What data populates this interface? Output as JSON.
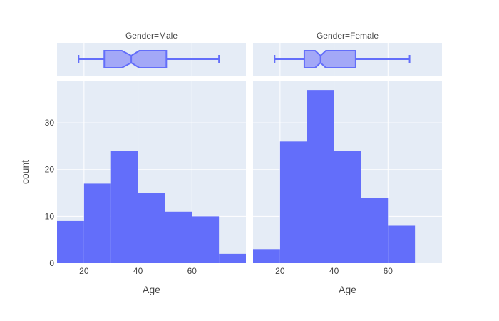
{
  "chart_data": {
    "type": "histogram",
    "y_axis": {
      "label": "count",
      "range": [
        0,
        39
      ],
      "ticks": [
        0,
        10,
        20,
        30
      ]
    },
    "x_axis": {
      "label": "Age",
      "ticks": [
        20,
        40,
        60
      ]
    },
    "colors": {
      "bar": "#636efa",
      "box_fill": "#a3a8f7",
      "box_line": "#636efa",
      "plot_bg": "#e5ecf6",
      "grid": "#ffffff"
    },
    "grid": true,
    "facets": [
      {
        "title": "Gender=Male",
        "xlim": [
          10,
          80
        ],
        "bins": [
          {
            "x0": 10,
            "x1": 20,
            "count": 9
          },
          {
            "x0": 20,
            "x1": 30,
            "count": 17
          },
          {
            "x0": 30,
            "x1": 40,
            "count": 24
          },
          {
            "x0": 40,
            "x1": 50,
            "count": 15
          },
          {
            "x0": 50,
            "x1": 60,
            "count": 11
          },
          {
            "x0": 60,
            "x1": 70,
            "count": 10
          },
          {
            "x0": 70,
            "x1": 80,
            "count": 2
          }
        ],
        "box": {
          "min": 18,
          "q1": 27.5,
          "notch_low": 34,
          "median": 37.5,
          "notch_high": 40.5,
          "q3": 50.5,
          "max": 70
        }
      },
      {
        "title": "Gender=Female",
        "xlim": [
          10,
          80
        ],
        "bins": [
          {
            "x0": 10,
            "x1": 20,
            "count": 3
          },
          {
            "x0": 20,
            "x1": 30,
            "count": 26
          },
          {
            "x0": 30,
            "x1": 40,
            "count": 37
          },
          {
            "x0": 40,
            "x1": 50,
            "count": 24
          },
          {
            "x0": 50,
            "x1": 60,
            "count": 14
          },
          {
            "x0": 60,
            "x1": 70,
            "count": 8
          }
        ],
        "box": {
          "min": 18,
          "q1": 29,
          "notch_low": 33,
          "median": 35,
          "notch_high": 37,
          "q3": 48,
          "max": 68
        }
      }
    ]
  }
}
